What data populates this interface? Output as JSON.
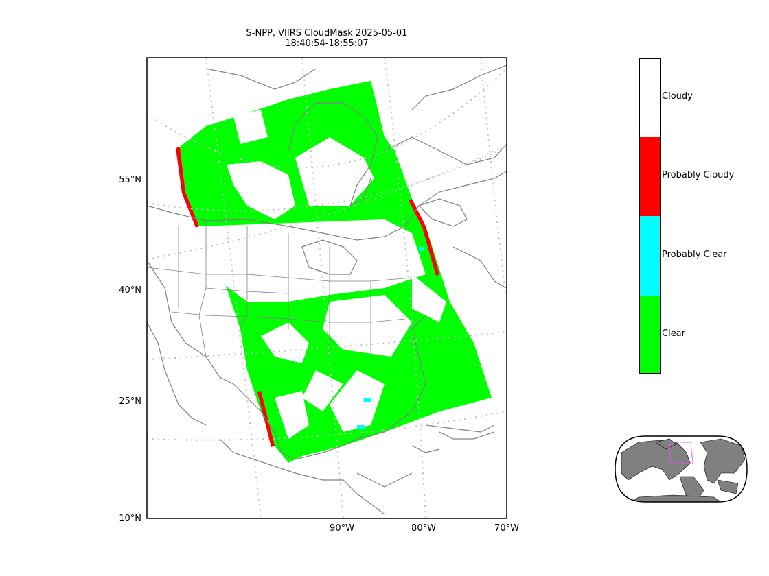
{
  "map": {
    "title_line1": "S-NPP, VIIRS CloudMask 2025-05-01",
    "title_line2": "18:40:54-18:55:07",
    "lat_labels": [
      "55°N",
      "40°N",
      "25°N",
      "10°N"
    ],
    "lon_labels": [
      "90°W",
      "80°W",
      "70°W"
    ]
  },
  "legend": {
    "categories": [
      {
        "label": "Cloudy",
        "color": "#ffffff"
      },
      {
        "label": "Probably Cloudy",
        "color": "#ff0000"
      },
      {
        "label": "Probably Clear",
        "color": "#00ffff"
      },
      {
        "label": "Clear",
        "color": "#00ff00"
      }
    ]
  },
  "colors": {
    "coastline": "#808080",
    "gridline": "#c0c0c0",
    "swath_clear": "#00ff00",
    "land_inset": "#808080",
    "inset_box": "#ff44ff"
  }
}
